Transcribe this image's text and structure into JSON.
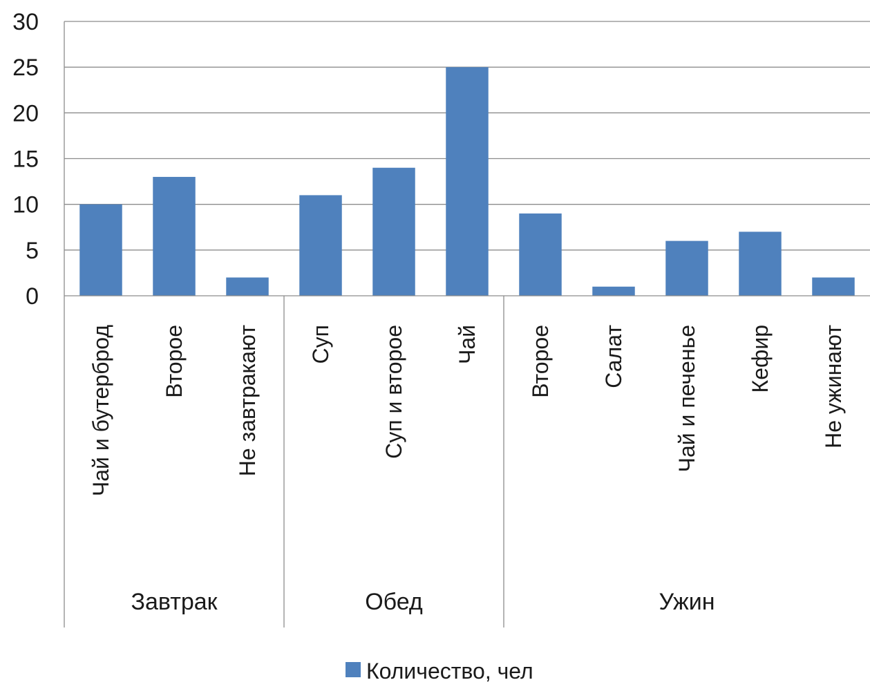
{
  "chart_data": {
    "type": "bar",
    "title": "",
    "xlabel": "",
    "ylabel": "",
    "ylim": [
      0,
      30
    ],
    "yticks": [
      0,
      5,
      10,
      15,
      20,
      25,
      30
    ],
    "grid": true,
    "legend_position": "bottom",
    "bar_color": "#4f81bd",
    "grid_color": "#8c8c8c",
    "groups": [
      {
        "name": "Завтрак",
        "categories": [
          "Чай и бутерброд",
          "Второе",
          "Не завтракают"
        ]
      },
      {
        "name": "Обед",
        "categories": [
          "Суп",
          "Суп и второе",
          "Чай"
        ]
      },
      {
        "name": "Ужин",
        "categories": [
          "Второе",
          "Салат",
          "Чай и печенье",
          "Кефир",
          "Не ужинают"
        ]
      }
    ],
    "categories": [
      "Чай и бутерброд",
      "Второе",
      "Не завтракают",
      "Суп",
      "Суп и второе",
      "Чай",
      "Второе",
      "Салат",
      "Чай и печенье",
      "Кефир",
      "Не ужинают"
    ],
    "series": [
      {
        "name": "Количество, чел",
        "values": [
          10,
          13,
          2,
          11,
          14,
          25,
          9,
          1,
          6,
          7,
          2
        ]
      }
    ]
  }
}
